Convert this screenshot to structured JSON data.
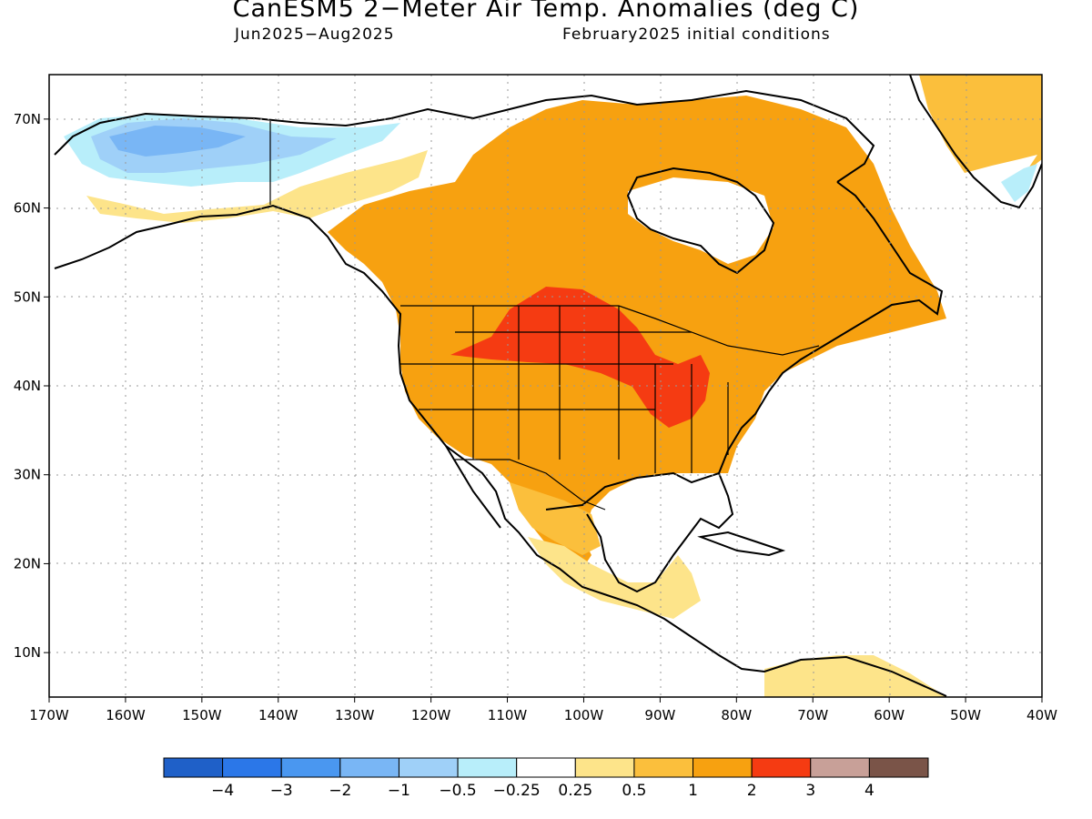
{
  "header": {
    "title": "CanESM5 2−Meter Air Temp. Anomalies (deg C)",
    "period": "Jun2025−Aug2025",
    "init": "February2025 initial conditions"
  },
  "axes": {
    "lon_labels": [
      "170W",
      "160W",
      "150W",
      "140W",
      "130W",
      "120W",
      "110W",
      "100W",
      "90W",
      "80W",
      "70W",
      "60W",
      "50W",
      "40W"
    ],
    "lat_labels": [
      "70N",
      "60N",
      "50N",
      "40N",
      "30N",
      "20N",
      "10N"
    ]
  },
  "map_extent": {
    "lon": [
      -170,
      -40
    ],
    "lat": [
      5,
      75
    ]
  },
  "legend": {
    "colors": [
      "#1f60c8",
      "#2b77e8",
      "#4a97f0",
      "#79b6f5",
      "#9fd0f8",
      "#b8eefa",
      "#ffffff",
      "#fde48a",
      "#fbbf3c",
      "#f7a110",
      "#f53b12",
      "#c8a098",
      "#7a5448"
    ],
    "labels": [
      "−4",
      "−3",
      "−2",
      "−1",
      "−0.5",
      "−0.25",
      "0.25",
      "0.5",
      "1",
      "2",
      "3",
      "4"
    ]
  },
  "anomaly_regions": [
    {
      "name": "alaska-cool",
      "color": "#9fd0f8"
    },
    {
      "name": "alaska-very-cool",
      "color": "#79b6f5"
    },
    {
      "name": "canada-warm",
      "color": "#f7a110"
    },
    {
      "name": "us-warm",
      "color": "#f7a110"
    },
    {
      "name": "central-us-hot",
      "color": "#f53b12"
    },
    {
      "name": "mexico-mild",
      "color": "#fbbf3c"
    },
    {
      "name": "greenland-warm",
      "color": "#fbbf3c"
    }
  ]
}
